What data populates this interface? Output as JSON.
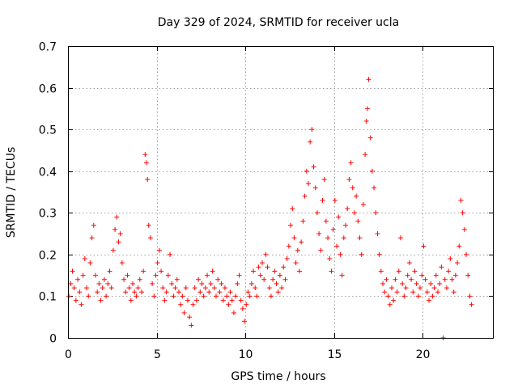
{
  "chart_data": {
    "type": "scatter",
    "title": "Day 329 of 2024, SRMTID for receiver ucla",
    "xlabel": "GPS time / hours",
    "ylabel": "SRMTID / TECUs",
    "xlim": [
      0,
      24
    ],
    "ylim": [
      0,
      0.7
    ],
    "xticks": [
      0,
      5,
      10,
      15,
      20
    ],
    "xtick_labels": [
      "0",
      "5",
      "10",
      "15",
      "20"
    ],
    "yticks": [
      0,
      0.1,
      0.2,
      0.3,
      0.4,
      0.5,
      0.6,
      0.7
    ],
    "ytick_labels": [
      "0",
      "0.1",
      "0.2",
      "0.3",
      "0.4",
      "0.5",
      "0.6",
      "0.7"
    ],
    "grid": true,
    "marker": "plus",
    "color": "#ff0000",
    "series": [
      {
        "name": "SRMTID",
        "points": [
          [
            0.05,
            0.1
          ],
          [
            0.15,
            0.13
          ],
          [
            0.25,
            0.16
          ],
          [
            0.35,
            0.12
          ],
          [
            0.45,
            0.09
          ],
          [
            0.55,
            0.14
          ],
          [
            0.65,
            0.11
          ],
          [
            0.75,
            0.08
          ],
          [
            0.85,
            0.15
          ],
          [
            0.95,
            0.19
          ],
          [
            1.05,
            0.12
          ],
          [
            1.15,
            0.1
          ],
          [
            1.25,
            0.18
          ],
          [
            1.35,
            0.24
          ],
          [
            1.45,
            0.27
          ],
          [
            1.55,
            0.15
          ],
          [
            1.65,
            0.11
          ],
          [
            1.75,
            0.13
          ],
          [
            1.85,
            0.09
          ],
          [
            1.95,
            0.12
          ],
          [
            2.05,
            0.14
          ],
          [
            2.15,
            0.1
          ],
          [
            2.25,
            0.13
          ],
          [
            2.35,
            0.16
          ],
          [
            2.45,
            0.12
          ],
          [
            2.55,
            0.21
          ],
          [
            2.65,
            0.26
          ],
          [
            2.75,
            0.29
          ],
          [
            2.85,
            0.23
          ],
          [
            2.95,
            0.25
          ],
          [
            3.05,
            0.18
          ],
          [
            3.15,
            0.14
          ],
          [
            3.25,
            0.11
          ],
          [
            3.35,
            0.15
          ],
          [
            3.45,
            0.12
          ],
          [
            3.55,
            0.09
          ],
          [
            3.65,
            0.13
          ],
          [
            3.75,
            0.11
          ],
          [
            3.85,
            0.1
          ],
          [
            3.95,
            0.12
          ],
          [
            4.05,
            0.14
          ],
          [
            4.15,
            0.11
          ],
          [
            4.25,
            0.16
          ],
          [
            4.35,
            0.44
          ],
          [
            4.42,
            0.42
          ],
          [
            4.48,
            0.38
          ],
          [
            4.55,
            0.27
          ],
          [
            4.65,
            0.24
          ],
          [
            4.75,
            0.13
          ],
          [
            4.85,
            0.1
          ],
          [
            4.95,
            0.15
          ],
          [
            5.05,
            0.18
          ],
          [
            5.15,
            0.21
          ],
          [
            5.25,
            0.16
          ],
          [
            5.35,
            0.12
          ],
          [
            5.45,
            0.09
          ],
          [
            5.55,
            0.11
          ],
          [
            5.65,
            0.15
          ],
          [
            5.75,
            0.2
          ],
          [
            5.85,
            0.13
          ],
          [
            5.95,
            0.1
          ],
          [
            6.05,
            0.12
          ],
          [
            6.15,
            0.14
          ],
          [
            6.25,
            0.11
          ],
          [
            6.35,
            0.08
          ],
          [
            6.45,
            0.1
          ],
          [
            6.55,
            0.06
          ],
          [
            6.65,
            0.12
          ],
          [
            6.75,
            0.09
          ],
          [
            6.85,
            0.05
          ],
          [
            6.95,
            0.03
          ],
          [
            7.05,
            0.08
          ],
          [
            7.15,
            0.12
          ],
          [
            7.25,
            0.09
          ],
          [
            7.35,
            0.14
          ],
          [
            7.45,
            0.11
          ],
          [
            7.55,
            0.13
          ],
          [
            7.65,
            0.1
          ],
          [
            7.75,
            0.12
          ],
          [
            7.85,
            0.15
          ],
          [
            7.95,
            0.11
          ],
          [
            8.05,
            0.13
          ],
          [
            8.15,
            0.16
          ],
          [
            8.25,
            0.12
          ],
          [
            8.35,
            0.1
          ],
          [
            8.45,
            0.14
          ],
          [
            8.55,
            0.11
          ],
          [
            8.65,
            0.13
          ],
          [
            8.75,
            0.09
          ],
          [
            8.85,
            0.12
          ],
          [
            8.95,
            0.1
          ],
          [
            9.05,
            0.08
          ],
          [
            9.15,
            0.11
          ],
          [
            9.25,
            0.09
          ],
          [
            9.35,
            0.06
          ],
          [
            9.45,
            0.1
          ],
          [
            9.55,
            0.13
          ],
          [
            9.65,
            0.15
          ],
          [
            9.75,
            0.09
          ],
          [
            9.85,
            0.07
          ],
          [
            9.95,
            0.04
          ],
          [
            10.05,
            0.08
          ],
          [
            10.15,
            0.11
          ],
          [
            10.25,
            0.1
          ],
          [
            10.35,
            0.13
          ],
          [
            10.45,
            0.16
          ],
          [
            10.55,
            0.12
          ],
          [
            10.65,
            0.1
          ],
          [
            10.75,
            0.17
          ],
          [
            10.85,
            0.15
          ],
          [
            10.95,
            0.18
          ],
          [
            11.05,
            0.14
          ],
          [
            11.15,
            0.2
          ],
          [
            11.25,
            0.17
          ],
          [
            11.35,
            0.12
          ],
          [
            11.45,
            0.1
          ],
          [
            11.55,
            0.14
          ],
          [
            11.65,
            0.16
          ],
          [
            11.75,
            0.13
          ],
          [
            11.85,
            0.11
          ],
          [
            11.95,
            0.15
          ],
          [
            12.05,
            0.12
          ],
          [
            12.15,
            0.17
          ],
          [
            12.25,
            0.14
          ],
          [
            12.35,
            0.19
          ],
          [
            12.45,
            0.22
          ],
          [
            12.55,
            0.27
          ],
          [
            12.65,
            0.31
          ],
          [
            12.75,
            0.24
          ],
          [
            12.85,
            0.18
          ],
          [
            12.95,
            0.21
          ],
          [
            13.05,
            0.16
          ],
          [
            13.15,
            0.23
          ],
          [
            13.25,
            0.28
          ],
          [
            13.35,
            0.34
          ],
          [
            13.45,
            0.4
          ],
          [
            13.55,
            0.37
          ],
          [
            13.65,
            0.47
          ],
          [
            13.75,
            0.5
          ],
          [
            13.85,
            0.41
          ],
          [
            13.95,
            0.36
          ],
          [
            14.05,
            0.3
          ],
          [
            14.15,
            0.25
          ],
          [
            14.25,
            0.21
          ],
          [
            14.35,
            0.33
          ],
          [
            14.45,
            0.38
          ],
          [
            14.55,
            0.28
          ],
          [
            14.65,
            0.24
          ],
          [
            14.75,
            0.19
          ],
          [
            14.85,
            0.16
          ],
          [
            14.95,
            0.26
          ],
          [
            15.05,
            0.33
          ],
          [
            15.15,
            0.22
          ],
          [
            15.25,
            0.29
          ],
          [
            15.35,
            0.2
          ],
          [
            15.45,
            0.15
          ],
          [
            15.55,
            0.24
          ],
          [
            15.65,
            0.27
          ],
          [
            15.75,
            0.31
          ],
          [
            15.85,
            0.38
          ],
          [
            15.95,
            0.42
          ],
          [
            16.05,
            0.36
          ],
          [
            16.15,
            0.3
          ],
          [
            16.25,
            0.34
          ],
          [
            16.35,
            0.28
          ],
          [
            16.45,
            0.24
          ],
          [
            16.55,
            0.2
          ],
          [
            16.65,
            0.32
          ],
          [
            16.75,
            0.44
          ],
          [
            16.82,
            0.52
          ],
          [
            16.88,
            0.55
          ],
          [
            16.95,
            0.62
          ],
          [
            17.05,
            0.48
          ],
          [
            17.15,
            0.4
          ],
          [
            17.25,
            0.36
          ],
          [
            17.35,
            0.3
          ],
          [
            17.45,
            0.25
          ],
          [
            17.55,
            0.2
          ],
          [
            17.65,
            0.16
          ],
          [
            17.75,
            0.13
          ],
          [
            17.85,
            0.11
          ],
          [
            17.95,
            0.14
          ],
          [
            18.05,
            0.1
          ],
          [
            18.15,
            0.08
          ],
          [
            18.25,
            0.12
          ],
          [
            18.35,
            0.09
          ],
          [
            18.45,
            0.14
          ],
          [
            18.55,
            0.11
          ],
          [
            18.65,
            0.16
          ],
          [
            18.75,
            0.24
          ],
          [
            18.85,
            0.13
          ],
          [
            18.95,
            0.1
          ],
          [
            19.05,
            0.12
          ],
          [
            19.15,
            0.15
          ],
          [
            19.25,
            0.18
          ],
          [
            19.35,
            0.14
          ],
          [
            19.45,
            0.11
          ],
          [
            19.55,
            0.16
          ],
          [
            19.65,
            0.13
          ],
          [
            19.75,
            0.1
          ],
          [
            19.85,
            0.12
          ],
          [
            19.95,
            0.15
          ],
          [
            20.05,
            0.22
          ],
          [
            20.15,
            0.14
          ],
          [
            20.25,
            0.11
          ],
          [
            20.35,
            0.09
          ],
          [
            20.45,
            0.13
          ],
          [
            20.55,
            0.1
          ],
          [
            20.65,
            0.12
          ],
          [
            20.75,
            0.15
          ],
          [
            20.85,
            0.11
          ],
          [
            20.95,
            0.13
          ],
          [
            21.05,
            0.17
          ],
          [
            21.15,
            0.0
          ],
          [
            21.25,
            0.14
          ],
          [
            21.35,
            0.12
          ],
          [
            21.45,
            0.16
          ],
          [
            21.55,
            0.19
          ],
          [
            21.65,
            0.14
          ],
          [
            21.75,
            0.11
          ],
          [
            21.85,
            0.15
          ],
          [
            21.95,
            0.18
          ],
          [
            22.05,
            0.22
          ],
          [
            22.15,
            0.33
          ],
          [
            22.25,
            0.3
          ],
          [
            22.35,
            0.26
          ],
          [
            22.45,
            0.2
          ],
          [
            22.55,
            0.15
          ],
          [
            22.65,
            0.1
          ],
          [
            22.75,
            0.08
          ]
        ]
      }
    ]
  }
}
